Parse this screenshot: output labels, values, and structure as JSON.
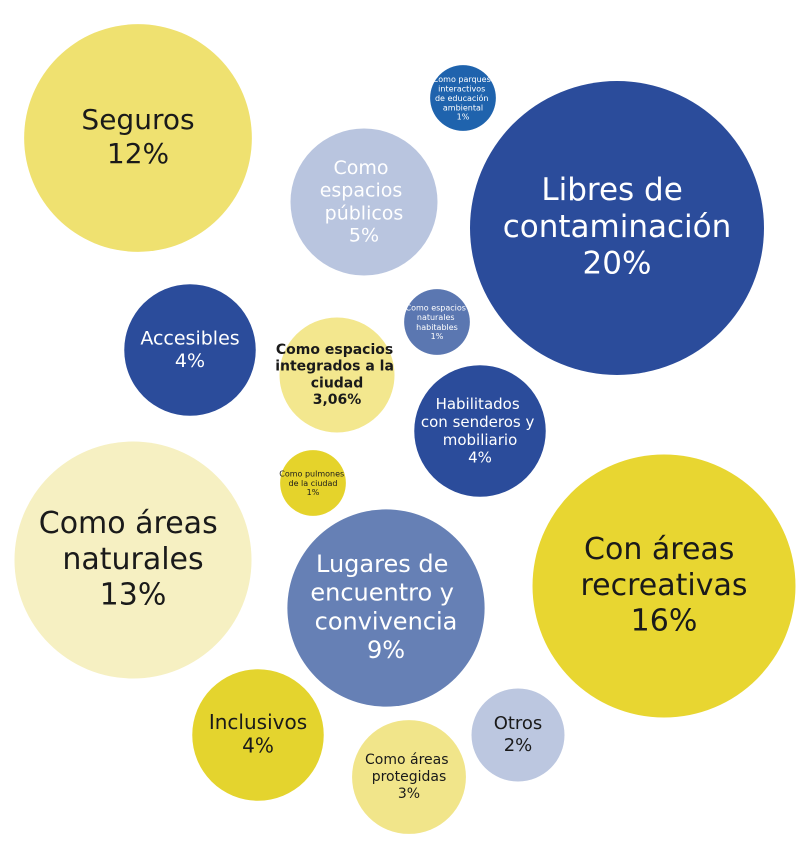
{
  "chart_data": {
    "type": "bubble",
    "categories": [
      "Seguros",
      "Como parques interactivos de educación ambiental",
      "Libres de contaminación",
      "Como espacios públicos",
      "Como espacios naturales habitables",
      "Accesibles",
      "Como espacios integrados a la ciudad",
      "Habilitados con senderos y mobiliario",
      "Como pulmones de la ciudad",
      "Como áreas naturales",
      "Con áreas recreativas",
      "Lugares de encuentro y convivencia",
      "Inclusivos",
      "Otros",
      "Como áreas protegidas"
    ],
    "values": [
      12,
      1,
      20,
      5,
      1,
      4,
      3.06,
      4,
      1,
      13,
      16,
      9,
      4,
      2,
      3
    ],
    "value_labels": [
      "12%",
      "1%",
      "20%",
      "5%",
      "1%",
      "4%",
      "3,06%",
      "4%",
      "1%",
      "13%",
      "16%",
      "9%",
      "4%",
      "2%",
      "3%"
    ],
    "colors": [
      "#efe170",
      "#1f63ad",
      "#2b4c9b",
      "#b9c5df",
      "#5b77b1",
      "#2b4c9b",
      "#f3e78e",
      "#2b4c9b",
      "#e5d32b",
      "#f6f0c2",
      "#e8d631",
      "#6680b5",
      "#e4d42e",
      "#bcc7e0",
      "#f1e58a"
    ]
  }
}
